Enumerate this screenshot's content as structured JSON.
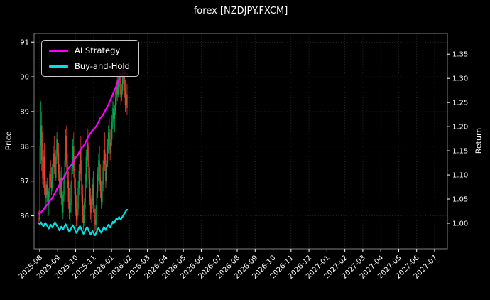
{
  "chart_data": {
    "type": "candlestick+line",
    "title": "forex [NZDJPY.FXCM]",
    "x_axis": {
      "tick_labels": [
        "2025-08",
        "2025-09",
        "2025-10",
        "2025-11",
        "2026-01",
        "2026-02",
        "2026-03",
        "2026-04",
        "2026-05",
        "2026-06",
        "2026-07",
        "2026-08",
        "2026-09",
        "2026-10",
        "2026-11",
        "2026-12",
        "2027-01",
        "2027-02",
        "2027-03",
        "2027-04",
        "2027-05",
        "2027-06",
        "2027-07"
      ]
    },
    "price_axis": {
      "label": "Price",
      "ticks": [
        86,
        87,
        88,
        89,
        90,
        91
      ],
      "range": [
        85.05,
        91.25
      ]
    },
    "return_axis": {
      "label": "Return",
      "ticks": [
        1.0,
        1.05,
        1.1,
        1.15,
        1.2,
        1.25,
        1.3,
        1.35
      ],
      "range": [
        0.947,
        1.393
      ]
    },
    "colors": {
      "up": "#00a650",
      "down": "#e8412f",
      "grid": "#aaaaaa",
      "frame": "#808080",
      "background": "#000000",
      "text": "#ffffff"
    },
    "legend": {
      "position": "upper-left"
    },
    "data_span_frac": [
      0.012,
      0.225
    ],
    "series": [
      {
        "name": "AI Strategy",
        "color": "#ff00ff",
        "axis": "return",
        "values": [
          1.02,
          1.021,
          1.022,
          1.024,
          1.026,
          1.028,
          1.031,
          1.034,
          1.036,
          1.038,
          1.04,
          1.043,
          1.046,
          1.048,
          1.05,
          1.053,
          1.056,
          1.06,
          1.063,
          1.066,
          1.07,
          1.073,
          1.076,
          1.08,
          1.083,
          1.086,
          1.089,
          1.092,
          1.095,
          1.098,
          1.102,
          1.106,
          1.11,
          1.113,
          1.116,
          1.118,
          1.12,
          1.123,
          1.126,
          1.13,
          1.133,
          1.136,
          1.138,
          1.14,
          1.143,
          1.146,
          1.15,
          1.153,
          1.156,
          1.158,
          1.16,
          1.163,
          1.166,
          1.17,
          1.174,
          1.178,
          1.181,
          1.184,
          1.187,
          1.19,
          1.192,
          1.194,
          1.196,
          1.198,
          1.2,
          1.203,
          1.207,
          1.21,
          1.214,
          1.218,
          1.22,
          1.222,
          1.225,
          1.228,
          1.232,
          1.235,
          1.238,
          1.242,
          1.246,
          1.25,
          1.254,
          1.258,
          1.262,
          1.267,
          1.272,
          1.276,
          1.28,
          1.285,
          1.29,
          1.294,
          1.298,
          1.302,
          1.305,
          1.308,
          1.31,
          1.312,
          1.313,
          1.311,
          1.309,
          1.308
        ]
      },
      {
        "name": "Buy-and-Hold",
        "color": "#00e1e1",
        "axis": "return",
        "values": [
          1.0,
          0.998,
          1.002,
          0.999,
          0.996,
          0.993,
          0.997,
          1.001,
          0.998,
          0.995,
          0.992,
          0.989,
          0.993,
          0.997,
          0.994,
          0.991,
          0.995,
          0.999,
          1.002,
          0.998,
          0.995,
          0.992,
          0.988,
          0.985,
          0.989,
          0.993,
          0.99,
          0.987,
          0.991,
          0.995,
          0.998,
          0.994,
          0.99,
          0.986,
          0.982,
          0.985,
          0.989,
          0.992,
          0.996,
          0.992,
          0.988,
          0.984,
          0.98,
          0.983,
          0.987,
          0.991,
          0.994,
          0.99,
          0.986,
          0.982,
          0.978,
          0.981,
          0.985,
          0.989,
          0.992,
          0.988,
          0.984,
          0.98,
          0.977,
          0.98,
          0.984,
          0.981,
          0.977,
          0.975,
          0.979,
          0.983,
          0.987,
          0.99,
          0.986,
          0.983,
          0.98,
          0.984,
          0.988,
          0.992,
          0.989,
          0.986,
          0.99,
          0.994,
          0.997,
          0.994,
          0.991,
          0.995,
          0.999,
          1.003,
          1.0,
          1.003,
          1.006,
          1.01,
          1.007,
          1.01,
          1.013,
          1.01,
          1.008,
          1.011,
          1.014,
          1.017,
          1.02,
          1.023,
          1.026,
          1.028
        ]
      }
    ],
    "candles": [
      [
        85.95,
        86.15,
        85.75,
        85.9
      ],
      [
        85.9,
        88.2,
        85.85,
        88.0
      ],
      [
        88.0,
        89.3,
        87.5,
        88.6
      ],
      [
        88.6,
        89.0,
        87.3,
        87.6
      ],
      [
        87.6,
        88.4,
        86.9,
        87.1
      ],
      [
        87.1,
        87.9,
        86.8,
        87.7
      ],
      [
        87.7,
        88.1,
        86.6,
        86.8
      ],
      [
        86.8,
        87.2,
        86.3,
        86.5
      ],
      [
        86.5,
        87.0,
        86.2,
        86.9
      ],
      [
        86.9,
        87.1,
        86.4,
        86.6
      ],
      [
        86.6,
        86.9,
        86.1,
        86.3
      ],
      [
        86.3,
        86.8,
        86.0,
        86.7
      ],
      [
        86.7,
        87.3,
        86.5,
        87.2
      ],
      [
        87.2,
        87.6,
        86.8,
        87.0
      ],
      [
        87.0,
        87.4,
        86.6,
        86.8
      ],
      [
        86.8,
        87.5,
        86.7,
        87.4
      ],
      [
        87.4,
        88.0,
        87.1,
        87.8
      ],
      [
        87.8,
        88.3,
        87.2,
        87.4
      ],
      [
        87.4,
        87.7,
        86.9,
        87.1
      ],
      [
        87.1,
        87.9,
        87.0,
        87.7
      ],
      [
        87.7,
        88.4,
        87.5,
        88.2
      ],
      [
        88.2,
        88.6,
        87.6,
        87.8
      ],
      [
        87.8,
        88.1,
        87.0,
        87.2
      ],
      [
        87.2,
        87.5,
        86.6,
        86.8
      ],
      [
        86.8,
        87.3,
        86.5,
        87.1
      ],
      [
        87.1,
        87.4,
        86.3,
        86.5
      ],
      [
        86.5,
        86.9,
        85.9,
        86.1
      ],
      [
        86.1,
        86.7,
        85.9,
        86.6
      ],
      [
        86.6,
        87.2,
        86.4,
        87.0
      ],
      [
        87.0,
        87.8,
        86.9,
        87.6
      ],
      [
        87.6,
        88.5,
        87.4,
        88.3
      ],
      [
        88.3,
        88.6,
        87.3,
        87.5
      ],
      [
        87.5,
        87.8,
        86.8,
        87.0
      ],
      [
        87.0,
        87.3,
        86.2,
        86.4
      ],
      [
        86.4,
        86.8,
        85.9,
        86.1
      ],
      [
        86.1,
        86.5,
        85.7,
        86.3
      ],
      [
        86.3,
        87.0,
        86.1,
        86.9
      ],
      [
        86.9,
        87.6,
        86.7,
        87.4
      ],
      [
        87.4,
        88.2,
        87.2,
        88.0
      ],
      [
        88.0,
        88.4,
        87.1,
        87.3
      ],
      [
        87.3,
        87.7,
        86.6,
        86.8
      ],
      [
        86.8,
        87.1,
        86.0,
        86.2
      ],
      [
        86.2,
        86.6,
        85.7,
        85.9
      ],
      [
        85.9,
        86.4,
        85.6,
        86.2
      ],
      [
        86.2,
        87.0,
        86.0,
        86.8
      ],
      [
        86.8,
        87.5,
        86.6,
        87.3
      ],
      [
        87.3,
        88.1,
        87.0,
        87.9
      ],
      [
        87.9,
        88.3,
        87.0,
        87.2
      ],
      [
        87.2,
        87.6,
        86.4,
        86.6
      ],
      [
        86.6,
        86.9,
        85.8,
        86.0
      ],
      [
        86.0,
        86.3,
        85.6,
        85.8
      ],
      [
        85.8,
        86.5,
        85.7,
        86.4
      ],
      [
        86.4,
        87.2,
        86.2,
        87.0
      ],
      [
        87.0,
        87.9,
        86.8,
        87.7
      ],
      [
        87.7,
        88.3,
        87.5,
        88.1
      ],
      [
        88.1,
        88.5,
        87.4,
        87.6
      ],
      [
        87.6,
        88.0,
        86.9,
        87.1
      ],
      [
        87.1,
        87.4,
        86.3,
        86.5
      ],
      [
        86.5,
        86.8,
        85.9,
        86.1
      ],
      [
        86.1,
        86.6,
        85.8,
        86.4
      ],
      [
        86.4,
        87.1,
        86.2,
        86.9
      ],
      [
        86.9,
        87.3,
        86.1,
        86.3
      ],
      [
        86.3,
        86.7,
        85.7,
        85.9
      ],
      [
        85.9,
        86.2,
        85.55,
        85.75
      ],
      [
        85.75,
        86.3,
        85.6,
        86.2
      ],
      [
        86.2,
        86.9,
        86.0,
        86.7
      ],
      [
        86.7,
        87.4,
        86.5,
        87.2
      ],
      [
        87.2,
        87.8,
        87.0,
        87.6
      ],
      [
        87.6,
        88.0,
        86.9,
        87.1
      ],
      [
        87.1,
        87.5,
        86.5,
        86.7
      ],
      [
        86.7,
        87.0,
        86.2,
        86.4
      ],
      [
        86.4,
        87.0,
        86.3,
        86.9
      ],
      [
        86.9,
        87.6,
        86.7,
        87.4
      ],
      [
        87.4,
        88.1,
        87.2,
        87.9
      ],
      [
        87.9,
        88.4,
        87.3,
        87.5
      ],
      [
        87.5,
        87.8,
        86.8,
        87.0
      ],
      [
        87.0,
        87.6,
        86.9,
        87.5
      ],
      [
        87.5,
        88.2,
        87.4,
        88.0
      ],
      [
        88.0,
        88.6,
        87.8,
        88.4
      ],
      [
        88.4,
        88.8,
        87.9,
        88.1
      ],
      [
        88.1,
        88.5,
        87.6,
        87.8
      ],
      [
        87.8,
        88.3,
        87.7,
        88.2
      ],
      [
        88.2,
        88.9,
        88.0,
        88.7
      ],
      [
        88.7,
        89.3,
        88.5,
        89.1
      ],
      [
        89.1,
        89.5,
        88.6,
        88.8
      ],
      [
        88.8,
        89.2,
        88.4,
        89.0
      ],
      [
        89.0,
        89.6,
        88.9,
        89.4
      ],
      [
        89.4,
        89.9,
        89.2,
        89.7
      ],
      [
        89.7,
        90.1,
        89.3,
        89.5
      ],
      [
        89.5,
        90.0,
        89.4,
        89.9
      ],
      [
        89.9,
        90.3,
        89.6,
        90.1
      ],
      [
        90.1,
        90.3,
        89.5,
        89.7
      ],
      [
        89.7,
        90.0,
        89.2,
        89.4
      ],
      [
        89.4,
        89.8,
        89.3,
        89.6
      ],
      [
        89.6,
        90.2,
        89.5,
        90.0
      ],
      [
        90.0,
        90.3,
        89.8,
        90.2
      ],
      [
        90.2,
        90.35,
        89.4,
        89.6
      ],
      [
        89.6,
        89.9,
        89.0,
        89.2
      ],
      [
        89.2,
        89.7,
        89.1,
        89.5
      ],
      [
        89.5,
        89.8,
        88.9,
        89.1
      ]
    ]
  }
}
